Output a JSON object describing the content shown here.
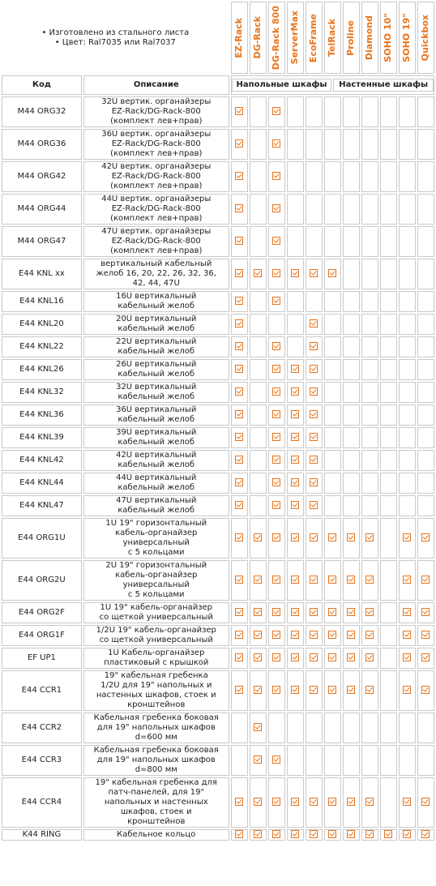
{
  "features": [
    "Изготовлено из стального листа",
    "Цвет: Ral7035 или Ral7037"
  ],
  "bullet": "•",
  "brands": [
    "EZ-Rack",
    "DG-Rack",
    "DG-Rack 800",
    "ServerMax",
    "EcoFrame",
    "TelRack",
    "Proline",
    "Diamond",
    "SOHO 10\"",
    "SOHO 19\"",
    "Quickbox"
  ],
  "headers": {
    "code": "Код",
    "description": "Описание",
    "floor_group": "Напольные шкафы",
    "wall_group": "Настенные шкафы"
  },
  "accent_color": "#e8741c",
  "check_icon": "checkbox-checked-icon",
  "rows": [
    {
      "code": "M44 ORG32",
      "description": [
        "32U вертик. органайзеры",
        "EZ-Rack/DG-Rack-800",
        "(комплект лев+прав)"
      ],
      "marks": [
        1,
        0,
        1,
        0,
        0,
        0,
        0,
        0,
        0,
        0,
        0
      ]
    },
    {
      "code": "M44 ORG36",
      "description": [
        "36U вертик. органайзеры",
        "EZ-Rack/DG-Rack-800",
        "(комплект лев+прав)"
      ],
      "marks": [
        1,
        0,
        1,
        0,
        0,
        0,
        0,
        0,
        0,
        0,
        0
      ]
    },
    {
      "code": "M44 ORG42",
      "description": [
        "42U вертик. органайзеры",
        "EZ-Rack/DG-Rack-800",
        "(комплект лев+прав)"
      ],
      "marks": [
        1,
        0,
        1,
        0,
        0,
        0,
        0,
        0,
        0,
        0,
        0
      ]
    },
    {
      "code": "M44 ORG44",
      "description": [
        "44U вертик. органайзеры",
        "EZ-Rack/DG-Rack-800",
        "(комплект лев+прав)"
      ],
      "marks": [
        1,
        0,
        1,
        0,
        0,
        0,
        0,
        0,
        0,
        0,
        0
      ]
    },
    {
      "code": "M44 ORG47",
      "description": [
        "47U вертик. органайзеры",
        "EZ-Rack/DG-Rack-800",
        "(комплект лев+прав)"
      ],
      "marks": [
        1,
        0,
        1,
        0,
        0,
        0,
        0,
        0,
        0,
        0,
        0
      ]
    },
    {
      "code": "E44 KNL xx",
      "description": [
        "вертикальный кабельный",
        "желоб 16, 20, 22, 26, 32, 36,",
        "42, 44, 47U"
      ],
      "marks": [
        1,
        1,
        1,
        1,
        1,
        1,
        0,
        0,
        0,
        0,
        0
      ]
    },
    {
      "code": "E44 KNL16",
      "description": [
        "16U вертикальный",
        "кабельный желоб"
      ],
      "marks": [
        1,
        0,
        1,
        0,
        0,
        0,
        0,
        0,
        0,
        0,
        0
      ]
    },
    {
      "code": "E44 KNL20",
      "description": [
        "20U вертикальный",
        "кабельный желоб"
      ],
      "marks": [
        1,
        0,
        0,
        0,
        1,
        0,
        0,
        0,
        0,
        0,
        0
      ]
    },
    {
      "code": "E44 KNL22",
      "description": [
        "22U вертикальный",
        "кабельный желоб"
      ],
      "marks": [
        1,
        0,
        1,
        0,
        1,
        0,
        0,
        0,
        0,
        0,
        0
      ]
    },
    {
      "code": "E44 KNL26",
      "description": [
        "26U вертикальный",
        "кабельный желоб"
      ],
      "marks": [
        1,
        0,
        1,
        1,
        1,
        0,
        0,
        0,
        0,
        0,
        0
      ]
    },
    {
      "code": "E44 KNL32",
      "description": [
        "32U вертикальный",
        "кабельный желоб"
      ],
      "marks": [
        1,
        0,
        1,
        1,
        1,
        0,
        0,
        0,
        0,
        0,
        0
      ]
    },
    {
      "code": "E44 KNL36",
      "description": [
        "36U вертикальный",
        "кабельный желоб"
      ],
      "marks": [
        1,
        0,
        1,
        1,
        1,
        0,
        0,
        0,
        0,
        0,
        0
      ]
    },
    {
      "code": "E44 KNL39",
      "description": [
        "39U вертикальный",
        "кабельный желоб"
      ],
      "marks": [
        1,
        0,
        1,
        1,
        1,
        0,
        0,
        0,
        0,
        0,
        0
      ]
    },
    {
      "code": "E44 KNL42",
      "description": [
        "42U вертикальный",
        "кабельный желоб"
      ],
      "marks": [
        1,
        0,
        1,
        1,
        1,
        0,
        0,
        0,
        0,
        0,
        0
      ]
    },
    {
      "code": "E44 KNL44",
      "description": [
        "44U вертикальный",
        "кабельный желоб"
      ],
      "marks": [
        1,
        0,
        1,
        1,
        1,
        0,
        0,
        0,
        0,
        0,
        0
      ]
    },
    {
      "code": "E44 KNL47",
      "description": [
        "47U вертикальный",
        "кабельный желоб"
      ],
      "marks": [
        1,
        0,
        1,
        1,
        1,
        0,
        0,
        0,
        0,
        0,
        0
      ]
    },
    {
      "code": "E44 ORG1U",
      "description": [
        "1U 19\" горизонтальный",
        "кабель-органайзер",
        "универсальный",
        "с 5 кольцами"
      ],
      "marks": [
        1,
        1,
        1,
        1,
        1,
        1,
        1,
        1,
        0,
        1,
        1
      ]
    },
    {
      "code": "E44 ORG2U",
      "description": [
        "2U 19\" горизонтальный",
        "кабель-органайзер",
        "универсальный",
        "с 5 кольцами"
      ],
      "marks": [
        1,
        1,
        1,
        1,
        1,
        1,
        1,
        1,
        0,
        1,
        1
      ]
    },
    {
      "code": "E44 ORG2F",
      "description": [
        "1U 19\" кабель-органайзер",
        "со щеткой универсальный"
      ],
      "marks": [
        1,
        1,
        1,
        1,
        1,
        1,
        1,
        1,
        0,
        1,
        1
      ]
    },
    {
      "code": "E44 ORG1F",
      "description": [
        "1/2U 19\" кабель-органайзер",
        "со щеткой универсальный"
      ],
      "marks": [
        1,
        1,
        1,
        1,
        1,
        1,
        1,
        1,
        0,
        1,
        1
      ]
    },
    {
      "code": "EF UP1",
      "description": [
        "1U Кабель-органайзер",
        "пластиковый с крышкой"
      ],
      "marks": [
        1,
        1,
        1,
        1,
        1,
        1,
        1,
        1,
        0,
        1,
        1
      ]
    },
    {
      "code": "E44 CCR1",
      "description": [
        "19\" кабельная гребенка",
        "1/2U для 19\" напольных и",
        "настенных шкафов, стоек и",
        "кронштейнов"
      ],
      "marks": [
        1,
        1,
        1,
        1,
        1,
        1,
        1,
        1,
        0,
        1,
        1
      ]
    },
    {
      "code": "E44 CCR2",
      "description": [
        "Кабельная гребенка боковая",
        "для 19\" напольных шкафов",
        "d=600 мм"
      ],
      "marks": [
        0,
        1,
        0,
        0,
        0,
        0,
        0,
        0,
        0,
        0,
        0
      ]
    },
    {
      "code": "E44 CCR3",
      "description": [
        "Кабельная гребенка боковая",
        "для 19\" напольных шкафов",
        "d=800 мм"
      ],
      "marks": [
        0,
        1,
        1,
        0,
        0,
        0,
        0,
        0,
        0,
        0,
        0
      ]
    },
    {
      "code": "E44 CCR4",
      "description": [
        "19\" кабельная гребенка для",
        "патч-панелей, для 19\"",
        "напольных и настенных",
        "шкафов, стоек и",
        "кронштейнов"
      ],
      "marks": [
        1,
        1,
        1,
        1,
        1,
        1,
        1,
        1,
        0,
        1,
        1
      ]
    },
    {
      "code": "K44 RING",
      "description": [
        "Кабельное кольцо"
      ],
      "marks": [
        1,
        1,
        1,
        1,
        1,
        1,
        1,
        1,
        1,
        1,
        1
      ]
    }
  ]
}
